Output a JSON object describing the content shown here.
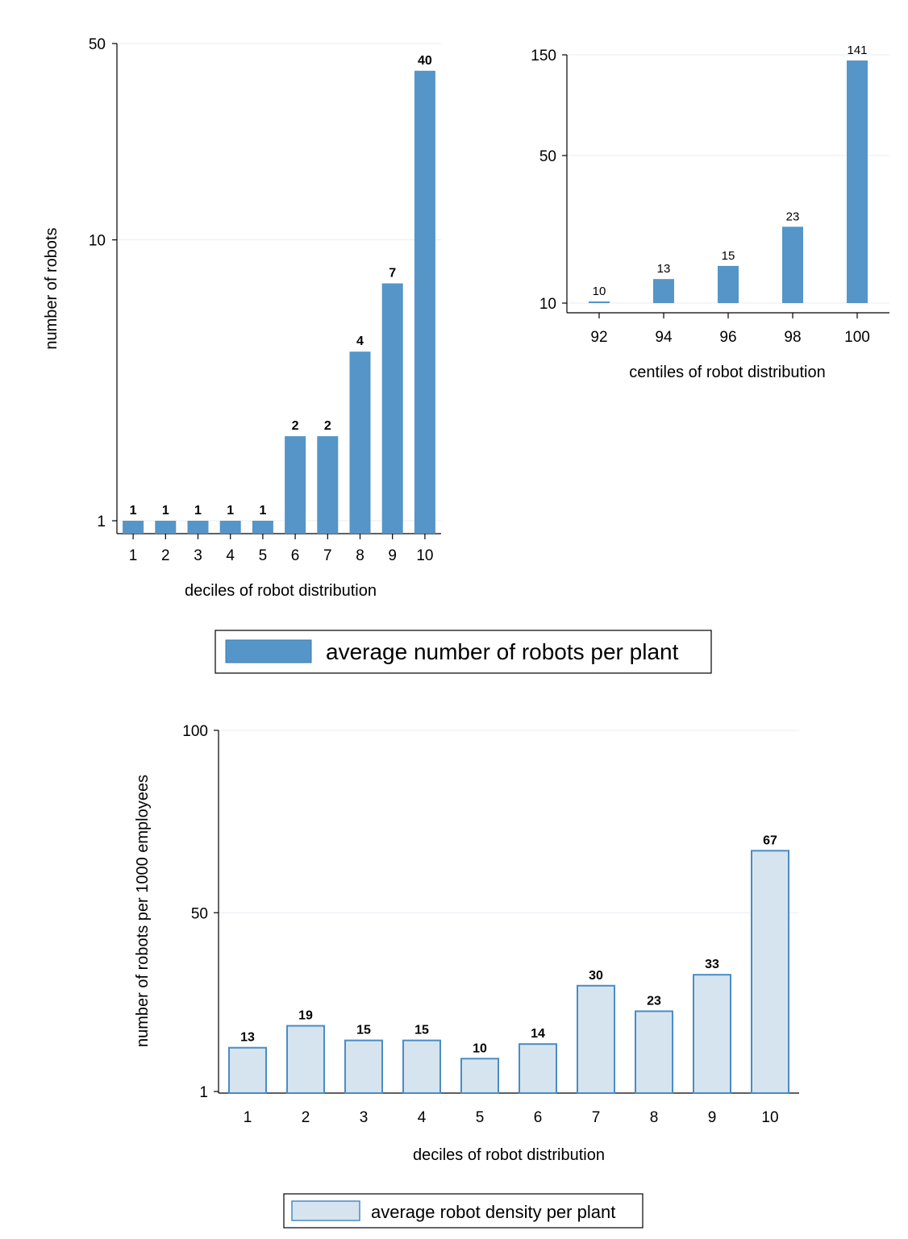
{
  "chart_data": [
    {
      "type": "bar",
      "xlabel": "deciles of robot distribution",
      "ylabel": "number of robots",
      "yscale": "log",
      "ylim": [
        1,
        50
      ],
      "yticks": [
        "1",
        "10",
        "50"
      ],
      "categories": [
        "1",
        "2",
        "3",
        "4",
        "5",
        "6",
        "7",
        "8",
        "9",
        "10"
      ],
      "values": [
        1,
        1,
        1,
        1,
        1,
        2,
        2,
        4,
        7,
        40
      ],
      "data_labels": [
        "1",
        "1",
        "1",
        "1",
        "1",
        "2",
        "2",
        "4",
        "7",
        "40"
      ],
      "bar_color": "#5595c7",
      "grid": true
    },
    {
      "type": "bar",
      "xlabel": "centiles of robot distribution",
      "ylabel": "",
      "yscale": "log",
      "ylim": [
        10,
        150
      ],
      "yticks": [
        "10",
        "50",
        "150"
      ],
      "categories": [
        "92",
        "94",
        "96",
        "98",
        "100"
      ],
      "values": [
        10,
        13,
        15,
        23,
        141
      ],
      "data_labels": [
        "10",
        "13",
        "15",
        "23",
        "141"
      ],
      "bar_color": "#5595c7",
      "grid": true
    },
    {
      "type": "bar",
      "xlabel": "deciles of robot distribution",
      "ylabel": "number of robots per 1000 employees",
      "yscale": "linear",
      "ylim": [
        1,
        100
      ],
      "yticks": [
        "1",
        "50",
        "100"
      ],
      "categories": [
        "1",
        "2",
        "3",
        "4",
        "5",
        "6",
        "7",
        "8",
        "9",
        "10"
      ],
      "values": [
        13,
        19,
        15,
        15,
        10,
        14,
        30,
        23,
        33,
        67
      ],
      "data_labels": [
        "13",
        "19",
        "15",
        "15",
        "10",
        "14",
        "30",
        "23",
        "33",
        "67"
      ],
      "bar_color": "#d6e4ef",
      "bar_edge_color": "#4a8cc4",
      "grid": true
    }
  ],
  "legends": {
    "top": "average number of robots per plant",
    "bottom": "average robot density per plant"
  },
  "colors": {
    "bar_dark": "#5595c7",
    "bar_light": "#d6e4ef",
    "bar_edge": "#4a8cc4"
  }
}
